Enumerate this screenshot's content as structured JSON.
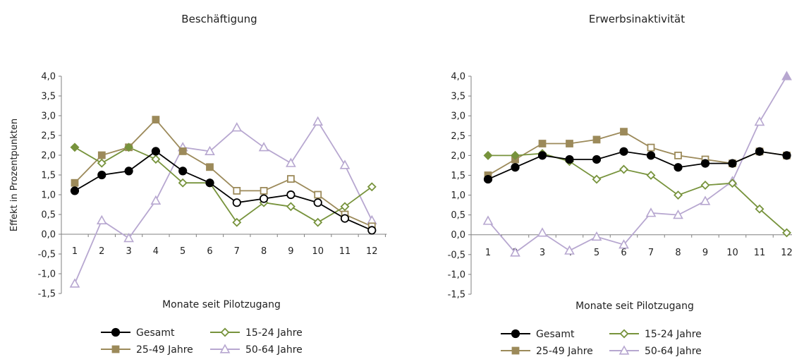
{
  "colors": {
    "gesamt": "#000000",
    "young": "#77933C",
    "mid": "#9C8A5A",
    "old": "#B7A7D0",
    "axis": "#808080"
  },
  "chart_data": [
    {
      "type": "line",
      "title": "Beschäftigung",
      "xlabel": "Monate seit Pilotzugang",
      "ylabel": "Effekt in Prozentpunkten",
      "categories": [
        "1",
        "2",
        "3",
        "4",
        "5",
        "6",
        "7",
        "8",
        "9",
        "10",
        "11",
        "12"
      ],
      "ylim": [
        -1.5,
        4.0
      ],
      "yticks": [
        "4,0",
        "3,5",
        "3,0",
        "2,5",
        "2,0",
        "1,5",
        "1,0",
        "0,5",
        "0,0",
        "-0,5",
        "-1,0",
        "-1,5"
      ],
      "grid": false,
      "legend_position": "bottom",
      "series": [
        {
          "name": "Gesamt",
          "marker": "circle",
          "values": [
            1.1,
            1.5,
            1.6,
            2.1,
            1.6,
            1.3,
            0.8,
            0.9,
            1.0,
            0.8,
            0.4,
            0.1
          ],
          "open_markers": [
            6,
            7,
            8,
            9,
            10,
            11
          ]
        },
        {
          "name": "15-24 Jahre",
          "marker": "diamond",
          "values": [
            2.2,
            1.8,
            2.2,
            1.9,
            1.3,
            1.3,
            0.3,
            0.8,
            0.7,
            0.3,
            0.7,
            1.2
          ],
          "open_markers": [
            1,
            3,
            4,
            5,
            6,
            7,
            8,
            9,
            10,
            11
          ]
        },
        {
          "name": "25-49 Jahre",
          "marker": "square",
          "values": [
            1.3,
            2.0,
            2.2,
            2.9,
            2.1,
            1.7,
            1.1,
            1.1,
            1.4,
            1.0,
            0.5,
            0.2
          ],
          "open_markers": [
            6,
            7,
            8,
            9,
            10,
            11
          ]
        },
        {
          "name": "50-64 Jahre",
          "marker": "triangle",
          "values": [
            -1.25,
            0.35,
            -0.1,
            0.85,
            2.2,
            2.1,
            2.7,
            2.2,
            1.8,
            2.85,
            1.75,
            0.35
          ],
          "open_markers": [
            0,
            1,
            2,
            3,
            4,
            5,
            6,
            7,
            8,
            9,
            10,
            11
          ]
        }
      ]
    },
    {
      "type": "line",
      "title": "Erwerbsinaktivität",
      "xlabel": "Monate seit Pilotzugang",
      "ylabel": "",
      "categories": [
        "1",
        "2",
        "3",
        "4",
        "5",
        "6",
        "7",
        "8",
        "9",
        "10",
        "11",
        "12"
      ],
      "ylim": [
        -1.5,
        4.0
      ],
      "yticks": [
        "4,0",
        "3,5",
        "3,0",
        "2,5",
        "2,0",
        "1,5",
        "1,0",
        "0,5",
        "0,0",
        "-0,5",
        "-1,0",
        "-1,5"
      ],
      "grid": false,
      "legend_position": "bottom",
      "series": [
        {
          "name": "Gesamt",
          "marker": "circle",
          "values": [
            1.4,
            1.7,
            2.0,
            1.9,
            1.9,
            2.1,
            2.0,
            1.7,
            1.8,
            1.8,
            2.1,
            2.0
          ],
          "open_markers": []
        },
        {
          "name": "15-24 Jahre",
          "marker": "diamond",
          "values": [
            2.0,
            2.0,
            2.05,
            1.85,
            1.4,
            1.65,
            1.5,
            1.0,
            1.25,
            1.3,
            0.65,
            0.05
          ],
          "open_markers": [
            3,
            4,
            5,
            6,
            7,
            8,
            9,
            10,
            11
          ]
        },
        {
          "name": "25-49 Jahre",
          "marker": "square",
          "values": [
            1.5,
            1.9,
            2.3,
            2.3,
            2.4,
            2.6,
            2.2,
            2.0,
            1.9,
            1.8,
            2.1,
            2.0
          ],
          "open_markers": [
            6,
            7,
            8,
            9,
            10
          ]
        },
        {
          "name": "50-64 Jahre",
          "marker": "triangle",
          "values": [
            0.35,
            -0.45,
            0.05,
            -0.4,
            -0.05,
            -0.25,
            0.55,
            0.5,
            0.85,
            1.35,
            2.85,
            4.0
          ],
          "open_markers": [
            0,
            1,
            2,
            3,
            4,
            5,
            6,
            7,
            8,
            9,
            10
          ]
        }
      ]
    }
  ]
}
